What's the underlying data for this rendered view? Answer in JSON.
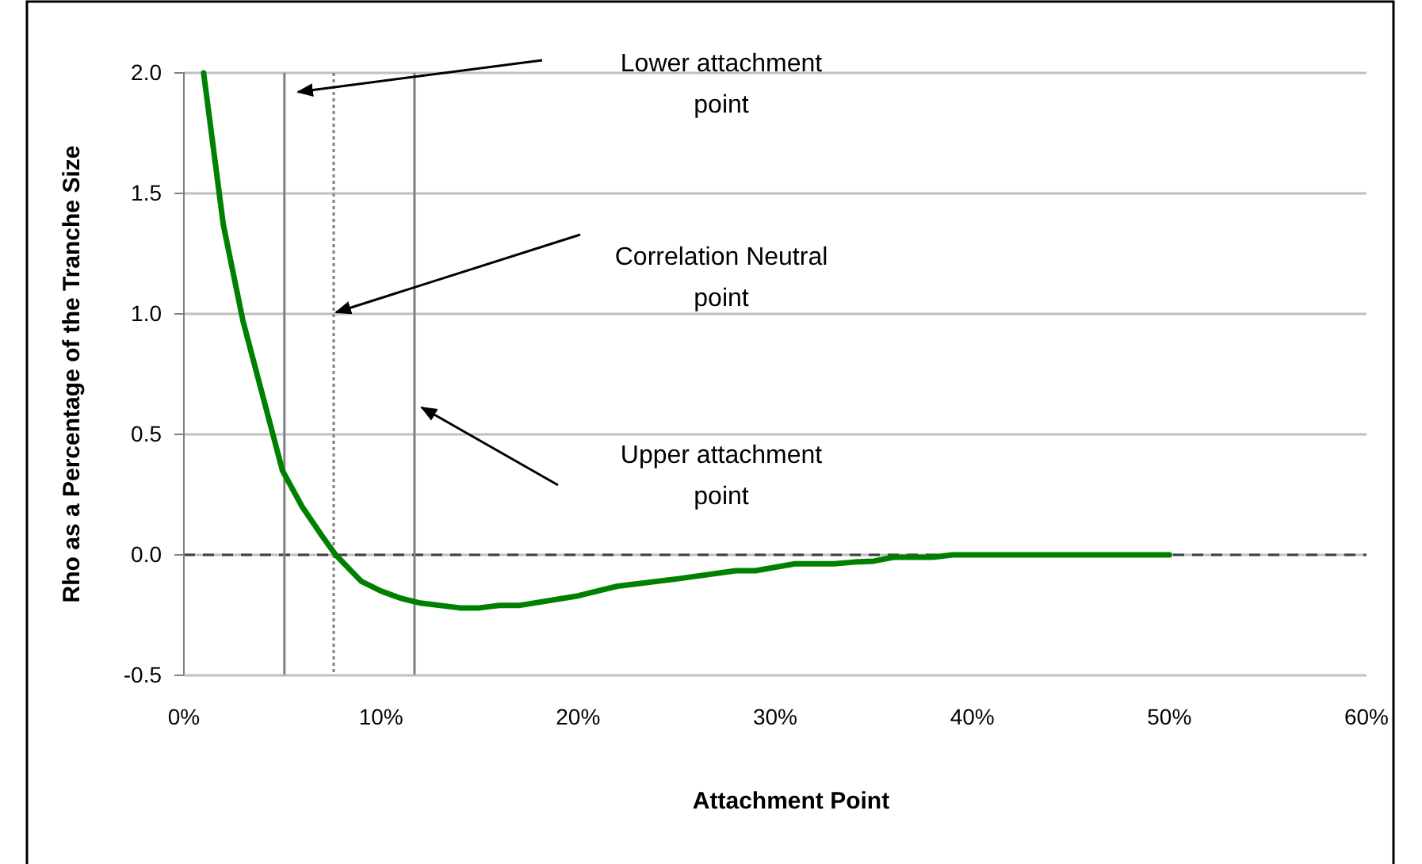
{
  "chart_data": {
    "type": "line",
    "xlabel": "Attachment Point",
    "ylabel": "Rho as a Percentage of the Tranche Size",
    "x": [
      1,
      2,
      3,
      4,
      5,
      6,
      7,
      7.7,
      9,
      10,
      11,
      12,
      14,
      15,
      16,
      17,
      20,
      22,
      25,
      28,
      29,
      31,
      33,
      34,
      35,
      36,
      38,
      39,
      42,
      46,
      50
    ],
    "series": [
      {
        "color": "#008000",
        "values": [
          2.0,
          1.37,
          0.97,
          0.66,
          0.35,
          0.2,
          0.08,
          0.0,
          -0.11,
          -0.15,
          -0.18,
          -0.2,
          -0.22,
          -0.22,
          -0.21,
          -0.21,
          -0.17,
          -0.13,
          -0.1,
          -0.066,
          -0.066,
          -0.037,
          -0.037,
          -0.03,
          -0.026,
          -0.01,
          -0.01,
          0,
          0,
          0,
          0
        ]
      }
    ],
    "xlim": [
      0,
      60
    ],
    "xticks": [
      {
        "value": 0,
        "label": "0%"
      },
      {
        "value": 10,
        "label": "10%"
      },
      {
        "value": 20,
        "label": "20%"
      },
      {
        "value": 30,
        "label": "30%"
      },
      {
        "value": 40,
        "label": "40%"
      },
      {
        "value": 50,
        "label": "50%"
      },
      {
        "value": 60,
        "label": "60%"
      }
    ],
    "ylim": [
      -0.5,
      2
    ],
    "yticks": [
      {
        "value": -0.5,
        "label": "-0.5"
      },
      {
        "value": 0,
        "label": "0.0"
      },
      {
        "value": 0.5,
        "label": "0.5"
      },
      {
        "value": 1,
        "label": "1.0"
      },
      {
        "value": 1.5,
        "label": "1.5"
      },
      {
        "value": 2,
        "label": "2.0"
      }
    ],
    "grid": "y",
    "marker": "none",
    "line_style": "solid",
    "ref_lines": [
      {
        "axis": "y",
        "value": 0,
        "color": "#404040",
        "line_style": "dashed"
      },
      {
        "axis": "x",
        "value": 5.1,
        "color": "#808080",
        "line_style": "solid"
      },
      {
        "axis": "x",
        "value": 7.6,
        "color": "#808080",
        "line_style": "dotted"
      },
      {
        "axis": "x",
        "value": 11.7,
        "color": "#808080",
        "line_style": "solid"
      }
    ],
    "annotations": [
      "Lower attachment point",
      "Correlation Neutral point",
      "Upper attachment point"
    ]
  }
}
